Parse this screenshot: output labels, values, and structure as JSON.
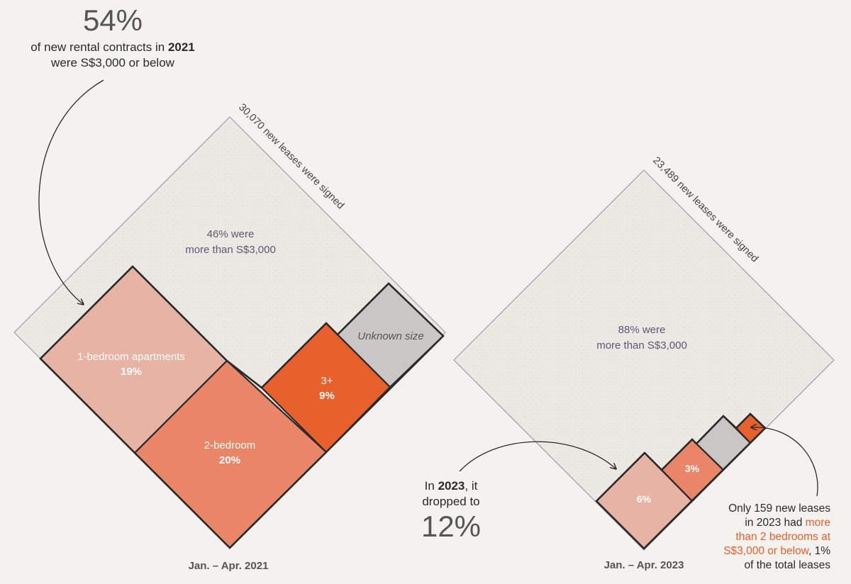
{
  "colors": {
    "background": "#f3f2ee",
    "outline": "#2a2a2a",
    "total_outline": "#9f9cb4",
    "above_3000_fill": "#ebe9e3",
    "one_bedroom": "#e6b3a4",
    "two_bedroom": "#e98667",
    "three_plus": "#e8602c",
    "unknown_size": "#c8c7c5",
    "highlight_text": "#e8602c"
  },
  "annotations": {
    "headline_pct": "54%",
    "headline_line1_a": "of new rental contracts in ",
    "headline_line1_b": "2021",
    "headline_line2": "were S$3,000 or below",
    "drop_line1_a": "In ",
    "drop_line1_b": "2023",
    "drop_line1_c": ", it",
    "drop_line2": "dropped to",
    "drop_pct": "12%",
    "note_line1": "Only 159 new leases",
    "note_line2_a": "in 2023 had ",
    "note_line2_b": "more",
    "note_line3": "than 2 bedrooms at",
    "note_line4_a": "S$3,000 or below",
    "note_line4_b": ", 1%",
    "note_line5": "of the total leases"
  },
  "chart_data": [
    {
      "type": "treemap",
      "period_label": "Jan. – Apr. 2021",
      "total_label": "30,070 new leases were signed",
      "total_leases": 30070,
      "above_label_line1": "46% were",
      "above_label_line2": "more than S$3,000",
      "above_3000_pct": 46,
      "at_or_below_3000_pct": 54,
      "segments": [
        {
          "name": "1-bedroom apartments",
          "label_line1": "1-bedroom apartments",
          "label_line2": "19%",
          "pct": 19
        },
        {
          "name": "2-bedroom",
          "label_line1": "2-bedroom",
          "label_line2": "20%",
          "pct": 20
        },
        {
          "name": "3+",
          "label_line1": "3+",
          "label_line2": "9%",
          "pct": 9
        },
        {
          "name": "Unknown size",
          "label_line1": "Unknown size",
          "label_line2": "",
          "pct": 6
        }
      ]
    },
    {
      "type": "treemap",
      "period_label": "Jan. – Apr. 2023",
      "total_label": "23,489 new leases were signed",
      "total_leases": 23489,
      "above_label_line1": "88% were",
      "above_label_line2": "more than S$3,000",
      "above_3000_pct": 88,
      "at_or_below_3000_pct": 12,
      "segments": [
        {
          "name": "1-bedroom",
          "label_line1": "6%",
          "label_line2": "",
          "pct": 6
        },
        {
          "name": "2-bedroom",
          "label_line1": "3%",
          "label_line2": "",
          "pct": 3
        },
        {
          "name": "Unknown size",
          "label_line1": "",
          "label_line2": "",
          "pct": 2
        },
        {
          "name": "3+",
          "label_line1": "",
          "label_line2": "",
          "pct": 1,
          "count": 159
        }
      ]
    }
  ]
}
